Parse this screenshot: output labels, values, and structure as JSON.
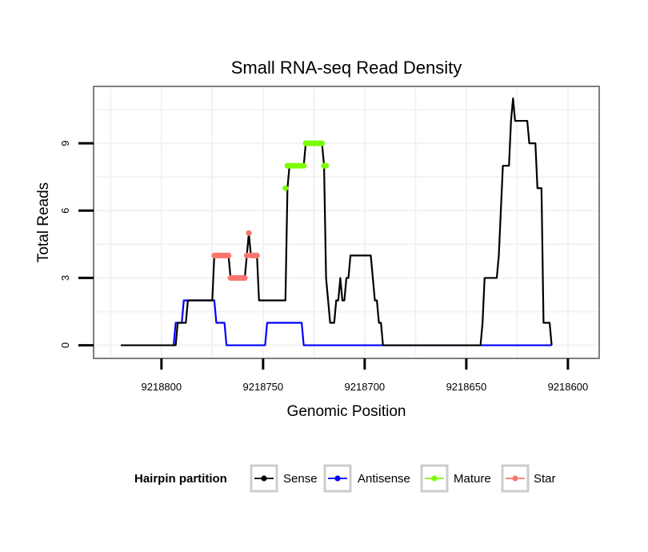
{
  "chart_data": {
    "type": "line",
    "title": "Small RNA-seq Read Density",
    "xlabel": "Genomic Position",
    "ylabel": "Total Reads",
    "x_reversed": true,
    "xlim": [
      9218833,
      9218585
    ],
    "ylim": [
      -0.55,
      11.5
    ],
    "x_ticks": [
      9218800,
      9218750,
      9218700,
      9218650,
      9218600
    ],
    "x_tick_labels": [
      "9218800",
      "9218750",
      "9218700",
      "9218650",
      "9218600"
    ],
    "y_ticks": [
      0,
      3,
      6,
      9
    ],
    "y_tick_labels": [
      "0",
      "3",
      "6",
      "9"
    ],
    "grid": true,
    "legend": {
      "title": "Hairpin partition",
      "position": "bottom",
      "entries": [
        {
          "name": "Sense",
          "color": "#000000"
        },
        {
          "name": "Antisense",
          "color": "#0000ff"
        },
        {
          "name": "Mature",
          "color": "#7cfc00"
        },
        {
          "name": "Star",
          "color": "#f8766d"
        }
      ]
    },
    "series": [
      {
        "name": "Sense",
        "color": "#000000",
        "style": "step-line",
        "points": [
          [
            9218820,
            0
          ],
          [
            9218793,
            0
          ],
          [
            9218792,
            1
          ],
          [
            9218788,
            1
          ],
          [
            9218787,
            2
          ],
          [
            9218775,
            2
          ],
          [
            9218774,
            4
          ],
          [
            9218767,
            4
          ],
          [
            9218766,
            3
          ],
          [
            9218759,
            3
          ],
          [
            9218758,
            4
          ],
          [
            9218757,
            5
          ],
          [
            9218756,
            4
          ],
          [
            9218753,
            4
          ],
          [
            9218752,
            2
          ],
          [
            9218739,
            2
          ],
          [
            9218738,
            7
          ],
          [
            9218737,
            8
          ],
          [
            9218730,
            8
          ],
          [
            9218729,
            9
          ],
          [
            9218721,
            9
          ],
          [
            9218720,
            8
          ],
          [
            9218719,
            3
          ],
          [
            9218718,
            2
          ],
          [
            9218717,
            1
          ],
          [
            9218715,
            1
          ],
          [
            9218714,
            2
          ],
          [
            9218713,
            2
          ],
          [
            9218712,
            3
          ],
          [
            9218711,
            2
          ],
          [
            9218710,
            2
          ],
          [
            9218709,
            3
          ],
          [
            9218708,
            3
          ],
          [
            9218707,
            4
          ],
          [
            9218697,
            4
          ],
          [
            9218696,
            3
          ],
          [
            9218695,
            2
          ],
          [
            9218694,
            2
          ],
          [
            9218693,
            1
          ],
          [
            9218692,
            1
          ],
          [
            9218691,
            0
          ],
          [
            9218643,
            0
          ],
          [
            9218642,
            1
          ],
          [
            9218641,
            3
          ],
          [
            9218635,
            3
          ],
          [
            9218634,
            4
          ],
          [
            9218633,
            6
          ],
          [
            9218632,
            8
          ],
          [
            9218629,
            8
          ],
          [
            9218628,
            10
          ],
          [
            9218627,
            11
          ],
          [
            9218626,
            10
          ],
          [
            9218620,
            10
          ],
          [
            9218619,
            9
          ],
          [
            9218616,
            9
          ],
          [
            9218615,
            7
          ],
          [
            9218613,
            7
          ],
          [
            9218612,
            1
          ],
          [
            9218609,
            1
          ],
          [
            9218608,
            0
          ]
        ]
      },
      {
        "name": "Antisense",
        "color": "#0000ff",
        "style": "step-line",
        "points": [
          [
            9218795,
            0
          ],
          [
            9218794,
            0
          ],
          [
            9218793,
            1
          ],
          [
            9218790,
            1
          ],
          [
            9218789,
            2
          ],
          [
            9218774,
            2
          ],
          [
            9218773,
            1
          ],
          [
            9218769,
            1
          ],
          [
            9218768,
            0
          ],
          [
            9218749,
            0
          ],
          [
            9218748,
            1
          ],
          [
            9218731,
            1
          ],
          [
            9218730,
            0
          ],
          [
            9218608,
            0
          ]
        ]
      },
      {
        "name": "Mature",
        "color": "#7cfc00",
        "style": "points",
        "points": [
          [
            9218739,
            7
          ],
          [
            9218738,
            8
          ],
          [
            9218737,
            8
          ],
          [
            9218736,
            8
          ],
          [
            9218735,
            8
          ],
          [
            9218734,
            8
          ],
          [
            9218733,
            8
          ],
          [
            9218732,
            8
          ],
          [
            9218731,
            8
          ],
          [
            9218730,
            8
          ],
          [
            9218729,
            9
          ],
          [
            9218728,
            9
          ],
          [
            9218727,
            9
          ],
          [
            9218726,
            9
          ],
          [
            9218725,
            9
          ],
          [
            9218724,
            9
          ],
          [
            9218723,
            9
          ],
          [
            9218722,
            9
          ],
          [
            9218721,
            9
          ],
          [
            9218720,
            8
          ],
          [
            9218719,
            8
          ]
        ]
      },
      {
        "name": "Star",
        "color": "#f8766d",
        "style": "points",
        "points": [
          [
            9218774,
            4
          ],
          [
            9218773,
            4
          ],
          [
            9218772,
            4
          ],
          [
            9218771,
            4
          ],
          [
            9218770,
            4
          ],
          [
            9218769,
            4
          ],
          [
            9218768,
            4
          ],
          [
            9218767,
            4
          ],
          [
            9218766,
            3
          ],
          [
            9218765,
            3
          ],
          [
            9218764,
            3
          ],
          [
            9218763,
            3
          ],
          [
            9218762,
            3
          ],
          [
            9218761,
            3
          ],
          [
            9218760,
            3
          ],
          [
            9218759,
            3
          ],
          [
            9218758,
            4
          ],
          [
            9218757,
            5
          ],
          [
            9218756,
            4
          ],
          [
            9218755,
            4
          ],
          [
            9218754,
            4
          ],
          [
            9218753,
            4
          ]
        ]
      }
    ]
  }
}
